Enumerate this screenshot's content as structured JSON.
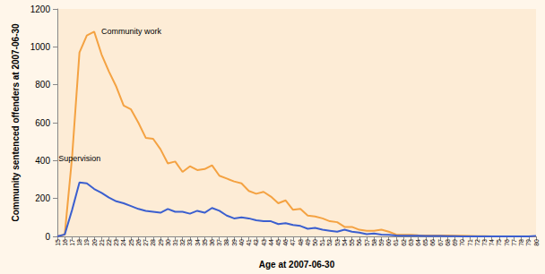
{
  "chart_data": {
    "type": "line",
    "xlabel": "Age at 2007-06-30",
    "ylabel": "Community sentenced offenders at 2007-06-30",
    "categories": [
      "15",
      "16",
      "17",
      "18",
      "19",
      "20",
      "21",
      "22",
      "23",
      "24",
      "25",
      "26",
      "27",
      "28",
      "29",
      "30",
      "31",
      "32",
      "33",
      "34",
      "35",
      "36",
      "37",
      "38",
      "39",
      "40",
      "41",
      "42",
      "43",
      "44",
      "45",
      "46",
      "47",
      "48",
      "49",
      "50",
      "51",
      "52",
      "53",
      "54",
      "55",
      "56",
      "57",
      "58",
      "59",
      "60",
      "61",
      "62",
      "63",
      "64",
      "65",
      "66",
      "67",
      "68",
      "69",
      "70",
      "71",
      "72",
      "73",
      "74",
      "75",
      "76",
      "77",
      "78",
      "79",
      "80"
    ],
    "series": [
      {
        "name": "Community work",
        "color": "#f4a242",
        "values": [
          0,
          10,
          420,
          970,
          1060,
          1080,
          960,
          870,
          790,
          690,
          670,
          600,
          520,
          515,
          460,
          385,
          395,
          340,
          370,
          350,
          355,
          375,
          320,
          305,
          290,
          280,
          240,
          225,
          235,
          210,
          175,
          190,
          140,
          145,
          110,
          105,
          95,
          80,
          75,
          50,
          50,
          35,
          30,
          30,
          35,
          25,
          10,
          8,
          8,
          6,
          5,
          5,
          5,
          5,
          3,
          3,
          2,
          1,
          1,
          0,
          0,
          0,
          0,
          0,
          0,
          0
        ]
      },
      {
        "name": "Supervision",
        "color": "#3b5fcf",
        "values": [
          0,
          10,
          140,
          285,
          280,
          250,
          230,
          205,
          185,
          175,
          160,
          145,
          135,
          130,
          125,
          145,
          130,
          130,
          120,
          135,
          125,
          150,
          135,
          110,
          95,
          100,
          95,
          85,
          80,
          80,
          65,
          70,
          60,
          55,
          40,
          45,
          35,
          30,
          25,
          35,
          25,
          20,
          12,
          15,
          10,
          8,
          5,
          4,
          3,
          3,
          2,
          2,
          2,
          1,
          1,
          0,
          0,
          0,
          0,
          0,
          0,
          0,
          0,
          0,
          0,
          2
        ]
      }
    ],
    "ylim": [
      0,
      1200
    ],
    "yticks": [
      0,
      200,
      400,
      600,
      800,
      1000,
      1200
    ],
    "grid": false
  }
}
